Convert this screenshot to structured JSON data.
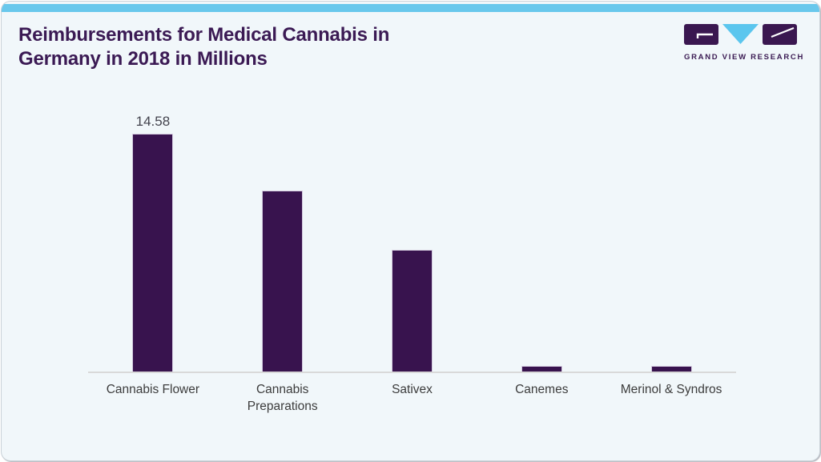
{
  "card": {
    "background": "#f1f7fa",
    "top_bar_color": "#69c8ec",
    "border_color": "#c9d2d8"
  },
  "header": {
    "title_lines": [
      "Reimbursements for Medical Cannabis in",
      "Germany in 2018 in Millions"
    ],
    "title_color": "#3b1a54"
  },
  "logo": {
    "text": "GRAND VIEW RESEARCH",
    "purple": "#3a1750",
    "blue": "#5bc6ee"
  },
  "chart_data": {
    "type": "bar",
    "title": "Reimbursements for Medical Cannabis in Germany in 2018 in Millions",
    "categories": [
      "Cannabis Flower",
      "Cannabis Preparations",
      "Sativex",
      "Canemes",
      "Merinol & Syndros"
    ],
    "values": [
      14.58,
      11.1,
      7.45,
      0.33,
      0.33
    ],
    "value_labels": [
      "14.58",
      "",
      "",
      "",
      ""
    ],
    "xlabel": "",
    "ylabel": "",
    "ylim": [
      0,
      16
    ],
    "grid": false,
    "legend": false,
    "bar_color": "#38134e",
    "bar_border_color": "#d5cce0",
    "axis_line_color": "#d9d9d9",
    "category_label_color": "#3c3c3c",
    "value_label_color": "#43434d"
  }
}
